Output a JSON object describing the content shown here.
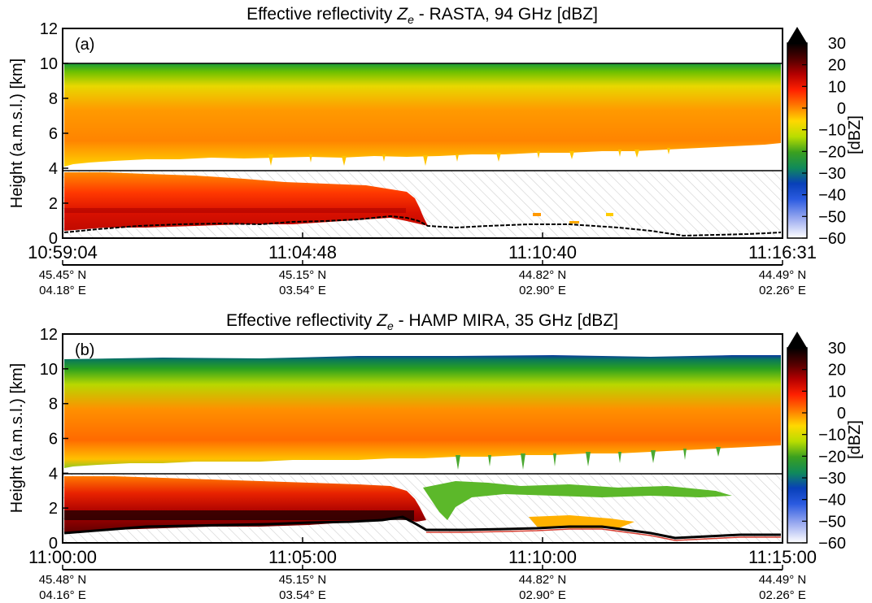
{
  "chart_data": [
    {
      "type": "heatmap",
      "panel_label": "(a)",
      "title": {
        "pre": "Effective reflectivity ",
        "z": "Z",
        "sub": "e",
        "post": " - RASTA, 94 GHz [dBZ]"
      },
      "ylabel": "Height (a.m.s.l.) [km]",
      "ylim": [
        0,
        12
      ],
      "yticks": [
        "0",
        "2",
        "4",
        "6",
        "8",
        "10",
        "12"
      ],
      "xticks": [
        {
          "time": "10:59:04",
          "lat": "45.45° N",
          "lon": "04.18° E"
        },
        {
          "time": "11:04:48",
          "lat": "45.15° N",
          "lon": "03.54° E"
        },
        {
          "time": "11:10:40",
          "lat": "44.82° N",
          "lon": "02.90° E"
        },
        {
          "time": "11:16:31",
          "lat": "44.49° N",
          "lon": "02.26° E"
        }
      ],
      "reference_lines_km": [
        10,
        4
      ],
      "colorbar": {
        "label": "[dBZ]",
        "range": [
          -60,
          30
        ],
        "ticks": [
          "30",
          "20",
          "10",
          "0",
          "−10",
          "−20",
          "−30",
          "−40",
          "−50",
          "−60"
        ]
      },
      "upper_cloud": {
        "top_km": 9.8,
        "base_start_km": 4.3,
        "base_end_km": 5.8,
        "max_dbz": 10
      },
      "lower_precip": {
        "top_km": 3.6,
        "ends_fraction_of_time": 0.49,
        "max_dbz": 20
      },
      "surface_km": [
        0.6,
        0.8,
        1.0,
        1.1,
        1.3,
        0.8,
        0.7,
        0.3,
        0.4
      ]
    },
    {
      "type": "heatmap",
      "panel_label": "(b)",
      "title": {
        "pre": "Effective reflectivity ",
        "z": "Z",
        "sub": "e",
        "post": " - HAMP MIRA, 35 GHz [dBZ]"
      },
      "ylabel": "Height (a.m.s.l.) [km]",
      "ylim": [
        0,
        12
      ],
      "yticks": [
        "0",
        "2",
        "4",
        "6",
        "8",
        "10",
        "12"
      ],
      "xticks": [
        {
          "time": "11:00:00",
          "lat": "45.48° N",
          "lon": "04.16° E"
        },
        {
          "time": "11:05:00",
          "lat": "45.15° N",
          "lon": "03.54° E"
        },
        {
          "time": "11:10:00",
          "lat": "44.82° N",
          "lon": "02.90° E"
        },
        {
          "time": "11:15:00",
          "lat": "44.49° N",
          "lon": "02.26° E"
        }
      ],
      "reference_lines_km": [
        4
      ],
      "colorbar": {
        "label": "[dBZ]",
        "range": [
          -60,
          30
        ],
        "ticks": [
          "30",
          "20",
          "10",
          "0",
          "−10",
          "−20",
          "−30",
          "−40",
          "−50",
          "−60"
        ]
      },
      "upper_cloud": {
        "top_km": 10.7,
        "base_start_km": 4.4,
        "base_end_km": 5.4,
        "max_dbz": 15
      },
      "lower_precip": {
        "top_km": 3.8,
        "ends_fraction_of_time": 0.52,
        "max_dbz": 25
      },
      "surface_km": [
        0.6,
        0.8,
        1.0,
        1.1,
        1.3,
        0.8,
        0.9,
        0.4,
        0.3
      ]
    }
  ]
}
